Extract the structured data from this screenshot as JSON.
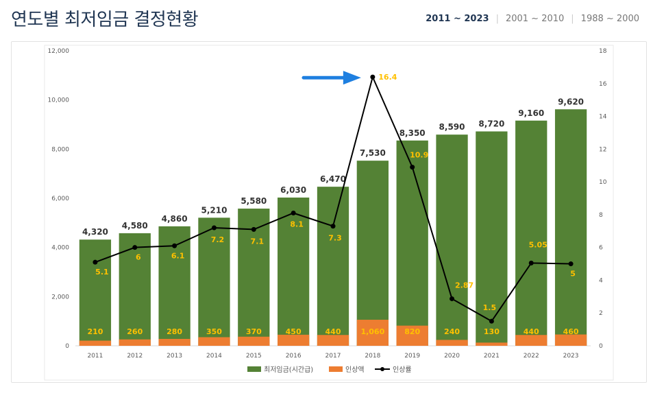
{
  "header": {
    "title": "연도별 최저임금 결정현황",
    "range_tabs": [
      {
        "label": "2011 ~ 2023",
        "active": true
      },
      {
        "label": "2001 ~ 2010",
        "active": false
      },
      {
        "label": "1988 ~ 2000",
        "active": false
      }
    ]
  },
  "colors": {
    "wage_bar": "#548235",
    "increase_bar": "#ED7D31",
    "rate_line": "#000000",
    "value_label": "#333333",
    "rate_label": "#FFC000",
    "arrow": "#1E7FE0"
  },
  "chart_data": {
    "type": "bar",
    "categories": [
      "2011",
      "2012",
      "2013",
      "2014",
      "2015",
      "2016",
      "2017",
      "2018",
      "2019",
      "2020",
      "2021",
      "2022",
      "2023"
    ],
    "series": [
      {
        "name": "최저임금(시간급)",
        "type": "bar",
        "axis": "left",
        "values": [
          4320,
          4580,
          4860,
          5210,
          5580,
          6030,
          6470,
          7530,
          8350,
          8590,
          8720,
          9160,
          9620
        ],
        "labels": [
          "4,320",
          "4,580",
          "4,860",
          "5,210",
          "5,580",
          "6,030",
          "6,470",
          "7,530",
          "8,350",
          "8,590",
          "8,720",
          "9,160",
          "9,620"
        ]
      },
      {
        "name": "인상액",
        "type": "bar",
        "axis": "left",
        "values": [
          210,
          260,
          280,
          350,
          370,
          450,
          440,
          1060,
          820,
          240,
          130,
          440,
          460
        ],
        "labels": [
          "210",
          "260",
          "280",
          "350",
          "370",
          "450",
          "440",
          "1,060",
          "820",
          "240",
          "130",
          "440",
          "460"
        ]
      },
      {
        "name": "인상률",
        "type": "line",
        "axis": "right",
        "values": [
          5.1,
          6.0,
          6.1,
          7.2,
          7.1,
          8.1,
          7.3,
          16.4,
          10.9,
          2.87,
          1.5,
          5.05,
          5.0
        ],
        "labels": [
          "5.1",
          "6",
          "6.1",
          "7.2",
          "7.1",
          "8.1",
          "7.3",
          "16.4",
          "10.9",
          "2.87",
          "1.5",
          "5.05",
          "5"
        ]
      }
    ],
    "y_left": {
      "min": 0,
      "max": 12000,
      "ticks": [
        "0",
        "2,000",
        "4,000",
        "6,000",
        "8,000",
        "10,000",
        "12,000"
      ]
    },
    "y_right": {
      "min": 0,
      "max": 18,
      "ticks": [
        "0",
        "2",
        "4",
        "6",
        "8",
        "10",
        "12",
        "14",
        "16",
        "18"
      ]
    },
    "legend": [
      "최저임금(시간급)",
      "인상액",
      "인상률"
    ],
    "annotation": "arrow pointing to 2018 peak (16.4)"
  }
}
